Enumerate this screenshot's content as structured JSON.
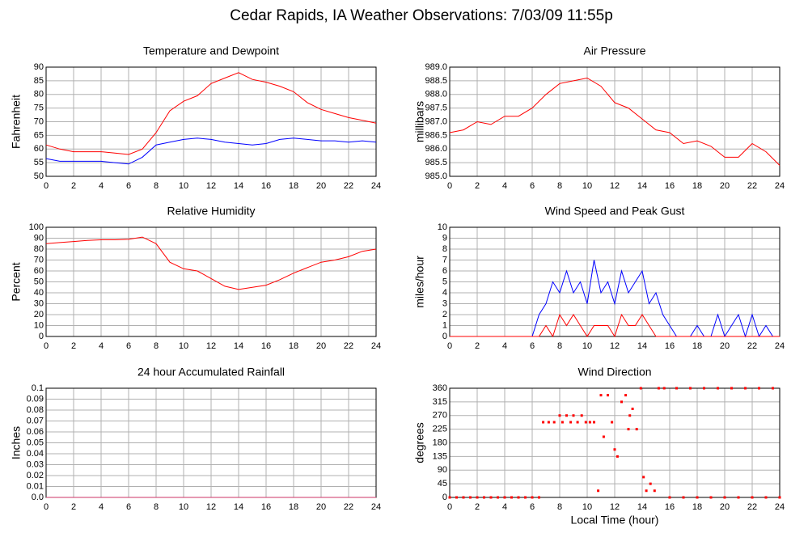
{
  "page_title": "Cedar Rapids, IA Weather Observations: 7/03/09 11:55p",
  "chart_data": [
    {
      "type": "line",
      "title": "Temperature and Dewpoint",
      "ylabel": "Fahrenheit",
      "x": [
        0,
        1,
        2,
        3,
        4,
        5,
        6,
        7,
        8,
        9,
        10,
        11,
        12,
        13,
        14,
        15,
        16,
        17,
        18,
        19,
        20,
        21,
        22,
        23,
        24
      ],
      "series": [
        {
          "color": "#ff0000",
          "values": [
            61.5,
            60,
            59,
            59,
            59,
            58.5,
            58,
            60,
            66,
            74,
            77.5,
            79.5,
            84,
            86,
            88,
            85.5,
            84.5,
            83,
            81,
            77,
            74.5,
            73,
            71.5,
            70.5,
            69.5
          ]
        },
        {
          "color": "#0000ff",
          "values": [
            56.5,
            55.5,
            55.5,
            55.5,
            55.5,
            55,
            54.5,
            57,
            61.5,
            62.5,
            63.5,
            64,
            63.5,
            62.5,
            62,
            61.5,
            62,
            63.5,
            64,
            63.5,
            63,
            63,
            62.5,
            63,
            62.5
          ]
        }
      ],
      "xlim": [
        0,
        24
      ],
      "xticks": [
        0,
        2,
        4,
        6,
        8,
        10,
        12,
        14,
        16,
        18,
        20,
        22,
        24
      ],
      "ylim": [
        50,
        90
      ],
      "yticks": [
        50,
        55,
        60,
        65,
        70,
        75,
        80,
        85,
        90
      ],
      "grid": true
    },
    {
      "type": "line",
      "title": "Air Pressure",
      "ylabel": "millibars",
      "x": [
        0,
        1,
        2,
        3,
        4,
        5,
        6,
        7,
        8,
        9,
        10,
        11,
        12,
        13,
        14,
        15,
        16,
        17,
        18,
        19,
        20,
        21,
        22,
        23,
        24
      ],
      "series": [
        {
          "color": "#ff0000",
          "values": [
            986.6,
            986.7,
            987.0,
            986.9,
            987.2,
            987.2,
            987.5,
            988.0,
            988.4,
            988.5,
            988.6,
            988.3,
            987.7,
            987.5,
            987.1,
            986.7,
            986.6,
            986.2,
            986.3,
            986.1,
            985.7,
            985.7,
            986.2,
            985.9,
            985.4
          ]
        }
      ],
      "xlim": [
        0,
        24
      ],
      "xticks": [
        0,
        2,
        4,
        6,
        8,
        10,
        12,
        14,
        16,
        18,
        20,
        22,
        24
      ],
      "ylim": [
        985,
        989
      ],
      "yticks": [
        {
          "value": 985,
          "label": "985.0"
        },
        985.5,
        {
          "value": 986,
          "label": "986.0"
        },
        986.5,
        {
          "value": 987,
          "label": "987.0"
        },
        987.5,
        {
          "value": 988,
          "label": "988.0"
        },
        988.5,
        {
          "value": 989,
          "label": "989.0"
        }
      ],
      "grid": true
    },
    {
      "type": "line",
      "title": "Relative Humidity",
      "ylabel": "Percent",
      "x": [
        0,
        1,
        2,
        3,
        4,
        5,
        6,
        7,
        8,
        9,
        10,
        11,
        12,
        13,
        14,
        15,
        16,
        17,
        18,
        19,
        20,
        21,
        22,
        23,
        24
      ],
      "series": [
        {
          "color": "#ff0000",
          "values": [
            85,
            86,
            87,
            88,
            88.5,
            88.5,
            89,
            91,
            85,
            68,
            62,
            60,
            53,
            46,
            43,
            45,
            47,
            52,
            58,
            63,
            68,
            70,
            73,
            78,
            80
          ]
        }
      ],
      "xlim": [
        0,
        24
      ],
      "xticks": [
        0,
        2,
        4,
        6,
        8,
        10,
        12,
        14,
        16,
        18,
        20,
        22,
        24
      ],
      "ylim": [
        0,
        100
      ],
      "yticks": [
        0,
        10,
        20,
        30,
        40,
        50,
        60,
        70,
        80,
        90,
        100
      ],
      "grid": true
    },
    {
      "type": "line",
      "title": "Wind Speed and Peak Gust",
      "ylabel": "miles/hour",
      "x": [
        0,
        0.5,
        1,
        1.5,
        2,
        2.5,
        3,
        3.5,
        4,
        4.5,
        5,
        5.5,
        6,
        6.5,
        7,
        7.5,
        8,
        8.5,
        9,
        9.5,
        10,
        10.5,
        11,
        11.5,
        12,
        12.5,
        13,
        13.5,
        14,
        14.5,
        15,
        15.5,
        16,
        16.5,
        17,
        17.5,
        18,
        18.5,
        19,
        19.5,
        20,
        20.5,
        21,
        21.5,
        22,
        22.5,
        23,
        23.5,
        24
      ],
      "series": [
        {
          "color": "#0000ff",
          "values": [
            0,
            0,
            0,
            0,
            0,
            0,
            0,
            0,
            0,
            0,
            0,
            0,
            0,
            2,
            3,
            5,
            4,
            6,
            4,
            5,
            3,
            7,
            4,
            5,
            3,
            6,
            4,
            5,
            6,
            3,
            4,
            2,
            1,
            0,
            0,
            0,
            1,
            0,
            0,
            2,
            0,
            1,
            2,
            0,
            2,
            0,
            1,
            0,
            0
          ]
        },
        {
          "color": "#ff0000",
          "values": [
            0,
            0,
            0,
            0,
            0,
            0,
            0,
            0,
            0,
            0,
            0,
            0,
            0,
            0,
            1,
            0,
            2,
            1,
            2,
            1,
            0,
            1,
            1,
            1,
            0,
            2,
            1,
            1,
            2,
            1,
            0,
            0,
            0,
            0,
            0,
            0,
            0,
            0,
            0,
            0,
            0,
            0,
            0,
            0,
            0,
            0,
            0,
            0,
            0
          ]
        }
      ],
      "xlim": [
        0,
        24
      ],
      "xticks": [
        0,
        2,
        4,
        6,
        8,
        10,
        12,
        14,
        16,
        18,
        20,
        22,
        24
      ],
      "ylim": [
        0,
        10
      ],
      "yticks": [
        0,
        1,
        2,
        3,
        4,
        5,
        6,
        7,
        8,
        9,
        10
      ],
      "grid": true
    },
    {
      "type": "line",
      "title": "24 hour Accumulated Rainfall",
      "ylabel": "Inches",
      "x": [
        0,
        24
      ],
      "series": [
        {
          "color": "#cc3366",
          "values": [
            0,
            0
          ]
        }
      ],
      "xlim": [
        0,
        24
      ],
      "xticks": [
        0,
        2,
        4,
        6,
        8,
        10,
        12,
        14,
        16,
        18,
        20,
        22,
        24
      ],
      "ylim": [
        0,
        0.1
      ],
      "yticks": [
        {
          "value": 0,
          "label": "0.0"
        },
        0.01,
        0.02,
        0.03,
        0.04,
        0.05,
        0.06,
        0.07,
        0.08,
        0.09,
        0.1
      ],
      "grid": true
    },
    {
      "type": "scatter",
      "title": "Wind Direction",
      "ylabel": "degrees",
      "xlabel": "Local Time (hour)",
      "x": [
        0,
        0.5,
        1,
        1.5,
        2,
        2.5,
        3,
        3.5,
        4,
        4.5,
        5,
        5.5,
        6,
        6.5,
        6.8,
        7.2,
        7.6,
        8,
        8.2,
        8.5,
        8.8,
        9,
        9.3,
        9.6,
        9.9,
        10.2,
        10.5,
        10.8,
        11,
        11.2,
        11.5,
        11.8,
        12,
        12.2,
        12.5,
        12.8,
        13,
        13.1,
        13.3,
        13.6,
        13.9,
        14.1,
        14.3,
        14.6,
        14.9,
        15.2,
        15.6,
        16,
        16.5,
        17,
        17.5,
        18,
        18.5,
        19,
        19.5,
        20,
        20.5,
        21,
        21.5,
        22,
        22.5,
        23,
        23.5,
        24
      ],
      "series": [
        {
          "color": "#ff0000",
          "values": [
            0,
            0,
            0,
            0,
            0,
            0,
            0,
            0,
            0,
            0,
            0,
            0,
            0,
            0,
            248,
            248,
            248,
            270,
            248,
            270,
            248,
            270,
            248,
            270,
            248,
            248,
            248,
            22,
            337,
            200,
            337,
            248,
            158,
            135,
            315,
            337,
            225,
            270,
            292,
            225,
            360,
            67,
            22,
            45,
            22,
            360,
            360,
            0,
            360,
            0,
            360,
            0,
            360,
            0,
            360,
            0,
            360,
            0,
            360,
            0,
            360,
            0,
            360,
            0
          ]
        }
      ],
      "xlim": [
        0,
        24
      ],
      "xticks": [
        0,
        2,
        4,
        6,
        8,
        10,
        12,
        14,
        16,
        18,
        20,
        22,
        24
      ],
      "ylim": [
        0,
        360
      ],
      "yticks": [
        0,
        45,
        90,
        135,
        180,
        225,
        270,
        315,
        360
      ],
      "grid": true
    }
  ]
}
